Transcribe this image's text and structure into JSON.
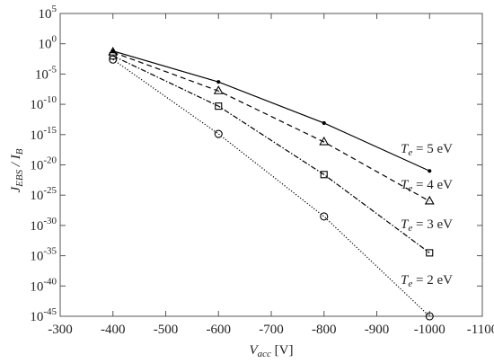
{
  "chart_data": {
    "type": "line",
    "xlabel": [
      "V",
      "acc",
      " [V]"
    ],
    "ylabel": [
      "J",
      "EBS",
      " / I",
      "B"
    ],
    "x": [
      -400,
      -600,
      -800,
      -1000
    ],
    "xlim": [
      -300,
      -1100
    ],
    "xticks": [
      -300,
      -400,
      -500,
      -600,
      -700,
      -800,
      -900,
      -1000,
      -1100
    ],
    "ylim": [
      1e-45,
      100000
    ],
    "log_y": true,
    "yticks": [
      {
        "value": 100000,
        "label": "10^5"
      },
      {
        "value": 1,
        "label": "10^0"
      },
      {
        "value": 1e-05,
        "label": "10^-5"
      },
      {
        "value": 1e-10,
        "label": "10^-10"
      },
      {
        "value": 1e-15,
        "label": "10^-15"
      },
      {
        "value": 1e-20,
        "label": "10^-20"
      },
      {
        "value": 1e-25,
        "label": "10^-25"
      },
      {
        "value": 1e-30,
        "label": "10^-30"
      },
      {
        "value": 1e-35,
        "label": "10^-35"
      },
      {
        "value": 1e-40,
        "label": "10^-40"
      },
      {
        "value": 1e-45,
        "label": "10^-45"
      }
    ],
    "series": [
      {
        "name": [
          "T",
          "e",
          " = 5 eV"
        ],
        "color": "#000000",
        "style": "solid",
        "marker": "dot",
        "values": [
          0.063,
          5e-07,
          8e-14,
          1e-21
        ]
      },
      {
        "name": [
          "T",
          "e",
          " = 4 eV"
        ],
        "color": "#000000",
        "style": "dashed",
        "marker": "triangle",
        "values": [
          0.04,
          1.6e-08,
          6e-17,
          1e-26
        ]
      },
      {
        "name": [
          "T",
          "e",
          " = 3 eV"
        ],
        "color": "#000000",
        "style": "dashdot",
        "marker": "square",
        "values": [
          0.01,
          5e-11,
          2.5e-22,
          3e-35
        ]
      },
      {
        "name": [
          "T",
          "e",
          " = 2 eV"
        ],
        "color": "#000000",
        "style": "dotted",
        "marker": "circle",
        "values": [
          0.0025,
          1.3e-15,
          3e-29,
          1e-45
        ]
      }
    ]
  }
}
